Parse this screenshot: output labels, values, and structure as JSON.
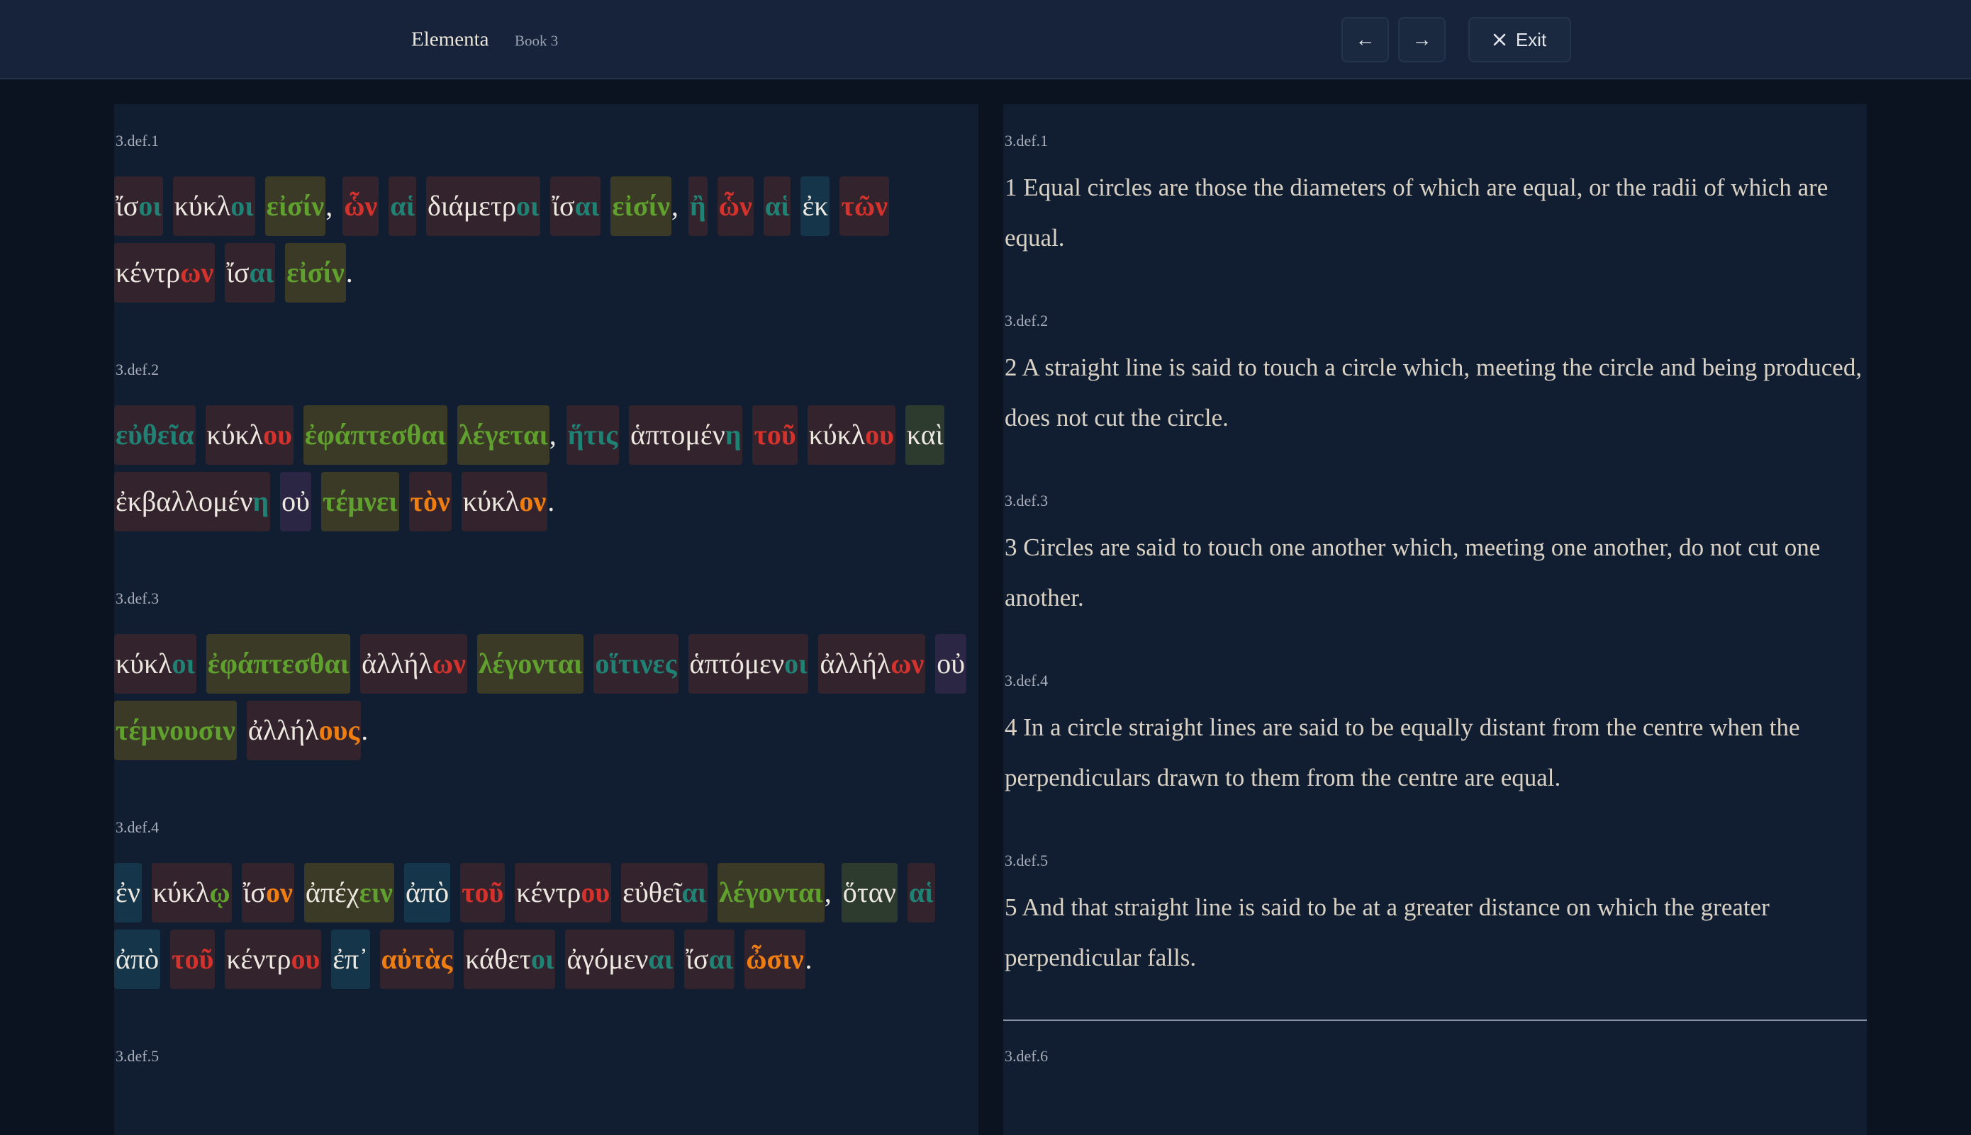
{
  "header": {
    "title": "Elementa",
    "subtitle": "Book 3",
    "prev": "←",
    "next": "→",
    "exit": "Exit"
  },
  "greek": [
    {
      "id": "3.def.1",
      "words": [
        {
          "stem": "ἴσ",
          "end": "οι",
          "tone": "teal",
          "box": "red"
        },
        {
          "stem": "κύκλ",
          "end": "οι",
          "tone": "teal",
          "box": "red"
        },
        {
          "end": "εἰσίν",
          "tone": "green",
          "box": "olive",
          "punct": ","
        },
        {
          "end": "ὧν",
          "tone": "red",
          "box": "red"
        },
        {
          "end": "αἱ",
          "tone": "teal",
          "box": "red"
        },
        {
          "stem": "διάμετρ",
          "end": "οι",
          "tone": "teal",
          "box": "red"
        },
        {
          "stem": "ἴσ",
          "end": "αι",
          "tone": "teal",
          "box": "red"
        },
        {
          "end": "εἰσίν",
          "tone": "green",
          "box": "olive",
          "punct": ","
        },
        {
          "end": "ἢ",
          "tone": "teal",
          "box": "red"
        },
        {
          "end": "ὧν",
          "tone": "red",
          "box": "red"
        },
        {
          "end": "αἱ",
          "tone": "teal",
          "box": "red"
        },
        {
          "stem": "ἐκ",
          "box": "blue"
        },
        {
          "end": "τῶν",
          "tone": "red",
          "box": "red"
        },
        {
          "stem": "κέντρ",
          "end": "ων",
          "tone": "red",
          "box": "red"
        },
        {
          "stem": "ἴσ",
          "end": "αι",
          "tone": "teal",
          "box": "red"
        },
        {
          "end": "εἰσίν",
          "tone": "green",
          "box": "olive",
          "punct": "."
        }
      ]
    },
    {
      "id": "3.def.2",
      "words": [
        {
          "end": "εὐθεῖα",
          "tone": "teal",
          "box": "red"
        },
        {
          "stem": "κύκλ",
          "end": "ου",
          "tone": "red",
          "box": "red"
        },
        {
          "end": "ἐφάπτεσθαι",
          "tone": "green",
          "box": "olive"
        },
        {
          "end": "λέγεται",
          "tone": "green",
          "box": "olive",
          "punct": ","
        },
        {
          "end": "ἥτις",
          "tone": "teal",
          "box": "red"
        },
        {
          "stem": "ἁπτομέν",
          "end": "η",
          "tone": "teal",
          "box": "red"
        },
        {
          "end": "τοῦ",
          "tone": "red",
          "box": "red"
        },
        {
          "stem": "κύκλ",
          "end": "ου",
          "tone": "red",
          "box": "red"
        },
        {
          "stem": "καὶ",
          "box": "green"
        },
        {
          "stem": "ἐκβαλλομέν",
          "end": "η",
          "tone": "teal",
          "box": "red"
        },
        {
          "stem": "οὐ",
          "box": "purple"
        },
        {
          "end": "τέμνει",
          "tone": "green",
          "box": "olive"
        },
        {
          "end": "τὸν",
          "tone": "orange",
          "box": "red"
        },
        {
          "stem": "κύκλ",
          "end": "ον",
          "tone": "orange",
          "box": "red",
          "punct": "."
        }
      ]
    },
    {
      "id": "3.def.3",
      "words": [
        {
          "stem": "κύκλ",
          "end": "οι",
          "tone": "teal",
          "box": "red"
        },
        {
          "end": "ἐφάπτεσθαι",
          "tone": "green",
          "box": "olive"
        },
        {
          "stem": "ἀλλήλ",
          "end": "ων",
          "tone": "red",
          "box": "red"
        },
        {
          "end": "λέγονται",
          "tone": "green",
          "box": "olive"
        },
        {
          "end": "οἵτινες",
          "tone": "teal",
          "box": "red"
        },
        {
          "stem": "ἁπτόμεν",
          "end": "οι",
          "tone": "teal",
          "box": "red"
        },
        {
          "stem": "ἀλλήλ",
          "end": "ων",
          "tone": "red",
          "box": "red"
        },
        {
          "stem": "οὐ",
          "box": "purple"
        },
        {
          "end": "τέμνουσιν",
          "tone": "green",
          "box": "olive"
        },
        {
          "stem": "ἀλλήλ",
          "end": "ους",
          "tone": "orange",
          "box": "red",
          "punct": "."
        }
      ]
    },
    {
      "id": "3.def.4",
      "words": [
        {
          "stem": "ἐν",
          "box": "blue"
        },
        {
          "stem": "κύκλ",
          "end": "ῳ",
          "tone": "green",
          "box": "red"
        },
        {
          "stem": "ἴσ",
          "end": "ον",
          "tone": "orange",
          "box": "red"
        },
        {
          "stem": "ἀπέχ",
          "end": "ειν",
          "tone": "green",
          "box": "olive"
        },
        {
          "stem": "ἀπὸ",
          "box": "blue"
        },
        {
          "end": "τοῦ",
          "tone": "red",
          "box": "red"
        },
        {
          "stem": "κέντρ",
          "end": "ου",
          "tone": "red",
          "box": "red"
        },
        {
          "stem": "εὐθεῖ",
          "end": "αι",
          "tone": "teal",
          "box": "red"
        },
        {
          "end": "λέγονται",
          "tone": "green",
          "box": "olive",
          "punct": ","
        },
        {
          "stem": "ὅταν",
          "box": "green"
        },
        {
          "end": "αἱ",
          "tone": "teal",
          "box": "red"
        },
        {
          "stem": "ἀπὸ",
          "box": "blue"
        },
        {
          "end": "τοῦ",
          "tone": "red",
          "box": "red"
        },
        {
          "stem": "κέντρ",
          "end": "ου",
          "tone": "red",
          "box": "red"
        },
        {
          "stem": "ἐπ᾽",
          "box": "blue"
        },
        {
          "end": "αὐτὰς",
          "tone": "orange",
          "box": "red"
        },
        {
          "stem": "κάθετ",
          "end": "οι",
          "tone": "teal",
          "box": "red"
        },
        {
          "stem": "ἀγόμεν",
          "end": "αι",
          "tone": "teal",
          "box": "red"
        },
        {
          "stem": "ἴσ",
          "end": "αι",
          "tone": "teal",
          "box": "red"
        },
        {
          "end": "ὦσιν",
          "tone": "orange",
          "box": "red",
          "punct": "."
        }
      ]
    },
    {
      "id": "3.def.5"
    }
  ],
  "english": [
    {
      "id": "3.def.1",
      "text": "1 Equal circles are those the diameters of which are equal, or the radii of which are equal."
    },
    {
      "id": "3.def.2",
      "text": "2 A straight line is said to touch a circle which, meeting the circle and being produced, does not cut the circle."
    },
    {
      "id": "3.def.3",
      "text": "3 Circles are said to touch one another which, meeting one another, do not cut one another."
    },
    {
      "id": "3.def.4",
      "text": "4 In a circle straight lines are said to be equally distant from the centre when the perpendiculars drawn to them from the centre are equal."
    },
    {
      "id": "3.def.5",
      "text": "5 And that straight line is said to be at a greater distance on which the greater perpendicular falls."
    },
    {
      "id": "3.def.6"
    }
  ]
}
